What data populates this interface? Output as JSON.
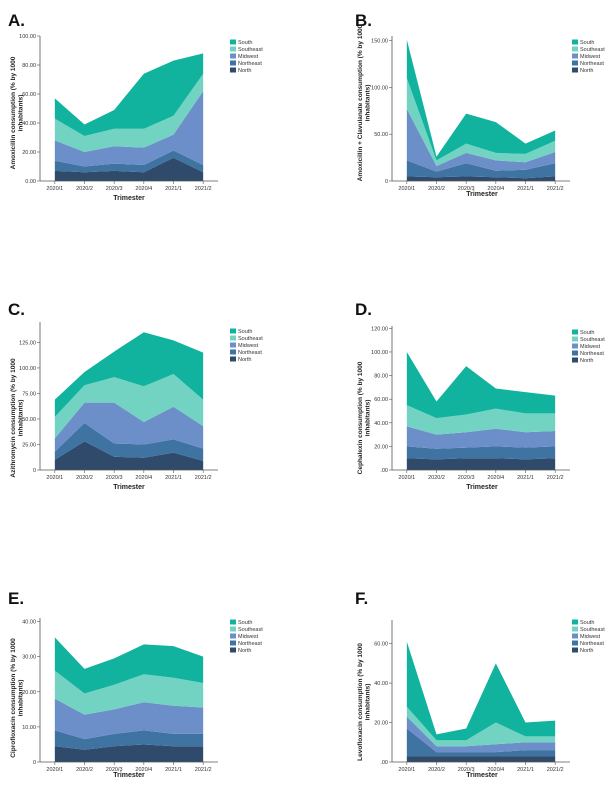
{
  "colors": {
    "South": "#11b39e",
    "Southeast": "#73d3c2",
    "Midwest": "#6d8fc9",
    "Northeast": "#3f73a2",
    "North": "#2f4a6b",
    "axis": "#555555",
    "plot_bg": "#ffffff"
  },
  "chart_data": [
    {
      "id": "A",
      "panel_label": "A.",
      "type": "area",
      "stacked": true,
      "xlabel": "Trimester",
      "ylabel": "Amoxicillin consumption (% by 1000 inhabitants)",
      "categories": [
        "2020/1",
        "2020/2",
        "2020/3",
        "2020/4",
        "2021/1",
        "2021/2"
      ],
      "yticks": [
        "0.00",
        "20.00",
        "40.00",
        "60.00",
        "80.00",
        "100.00"
      ],
      "ylim": [
        0,
        100
      ],
      "legend_position": "top-right",
      "series": [
        {
          "name": "North",
          "values": [
            7,
            6,
            7,
            6,
            16,
            6
          ]
        },
        {
          "name": "Northeast",
          "values": [
            7,
            4,
            5,
            5,
            5,
            5
          ]
        },
        {
          "name": "Midwest",
          "values": [
            14,
            10,
            12,
            12,
            11,
            51
          ]
        },
        {
          "name": "Southeast",
          "values": [
            15,
            11,
            12,
            13,
            13,
            12
          ]
        },
        {
          "name": "South",
          "values": [
            14,
            8,
            13,
            38,
            38,
            14
          ]
        }
      ]
    },
    {
      "id": "B",
      "panel_label": "B.",
      "type": "area",
      "stacked": true,
      "xlabel": "Trimester",
      "ylabel": "Amoxicillin + Clavulanate consumption (% by 1000 inhabitants)",
      "categories": [
        "2020/1",
        "2020/2",
        "2020/3",
        "2020/4",
        "2021/1",
        "2021/2"
      ],
      "yticks": [
        "0",
        "50.00",
        "100.00",
        "150.00"
      ],
      "ylim": [
        0,
        155
      ],
      "legend_position": "top-right",
      "series": [
        {
          "name": "North",
          "values": [
            5,
            4,
            5,
            4,
            3,
            5
          ]
        },
        {
          "name": "Northeast",
          "values": [
            17,
            6,
            14,
            7,
            9,
            14
          ]
        },
        {
          "name": "Midwest",
          "values": [
            55,
            6,
            11,
            11,
            8,
            12
          ]
        },
        {
          "name": "Southeast",
          "values": [
            33,
            6,
            10,
            8,
            9,
            12
          ]
        },
        {
          "name": "South",
          "values": [
            41,
            4,
            32,
            33,
            11,
            11
          ]
        }
      ]
    },
    {
      "id": "C",
      "panel_label": "C.",
      "type": "area",
      "stacked": true,
      "xlabel": "Trimester",
      "ylabel": "Azithromycin consumption (% by 1000 inhabitants)",
      "categories": [
        "2020/1",
        "2020/2",
        "2020/3",
        "2020/4",
        "2021/1",
        "2021/2"
      ],
      "yticks": [
        "0",
        "25.00",
        "50.00",
        "75.00",
        "100.00",
        "125.00"
      ],
      "ylim": [
        0,
        145
      ],
      "legend_position": "top-right",
      "series": [
        {
          "name": "North",
          "values": [
            10,
            28,
            13,
            12,
            17,
            9
          ]
        },
        {
          "name": "Northeast",
          "values": [
            8,
            18,
            13,
            13,
            13,
            12
          ]
        },
        {
          "name": "Midwest",
          "values": [
            13,
            20,
            40,
            22,
            32,
            22
          ]
        },
        {
          "name": "Southeast",
          "values": [
            21,
            17,
            25,
            35,
            32,
            26
          ]
        },
        {
          "name": "South",
          "values": [
            17,
            13,
            25,
            53,
            33,
            46
          ]
        }
      ]
    },
    {
      "id": "D",
      "panel_label": "D.",
      "type": "area",
      "stacked": true,
      "xlabel": "Trimester",
      "ylabel": "Cephalexin consumption (% by 1000 inhabitants)",
      "categories": [
        "2020/1",
        "2020/2",
        "2020/3",
        "2020/4",
        "2021/1",
        "2021/2"
      ],
      "yticks": [
        ".00",
        "20.00",
        "40.00",
        "60.00",
        "80.00",
        "100.00",
        "120.00"
      ],
      "ylim": [
        0,
        122
      ],
      "legend_position": "top-right",
      "series": [
        {
          "name": "North",
          "values": [
            10,
            9,
            10,
            10,
            9,
            10
          ]
        },
        {
          "name": "Northeast",
          "values": [
            10,
            9,
            9,
            10,
            10,
            10
          ]
        },
        {
          "name": "Midwest",
          "values": [
            17,
            12,
            13,
            15,
            13,
            13
          ]
        },
        {
          "name": "Southeast",
          "values": [
            18,
            14,
            15,
            17,
            16,
            15
          ]
        },
        {
          "name": "South",
          "values": [
            45,
            14,
            41,
            17,
            18,
            15
          ]
        }
      ]
    },
    {
      "id": "E",
      "panel_label": "E.",
      "type": "area",
      "stacked": true,
      "xlabel": "Trimester",
      "ylabel": "Ciprofloxacin consumption (% by 1000 inhabitants)",
      "categories": [
        "2020/1",
        "2020/2",
        "2020/3",
        "2020/4",
        "2021/1",
        "2021/2"
      ],
      "yticks": [
        "0",
        "10.00",
        "20.00",
        "30.00",
        "40.00"
      ],
      "ylim": [
        0,
        41
      ],
      "legend_position": "top-right",
      "series": [
        {
          "name": "North",
          "values": [
            4.5,
            3.5,
            4.5,
            5,
            4.5,
            4.5
          ]
        },
        {
          "name": "Northeast",
          "values": [
            4.5,
            3,
            3.5,
            4,
            3.5,
            3.5
          ]
        },
        {
          "name": "Midwest",
          "values": [
            9,
            7,
            7,
            8,
            8,
            7.5
          ]
        },
        {
          "name": "Southeast",
          "values": [
            8,
            6,
            7,
            8,
            8,
            7
          ]
        },
        {
          "name": "South",
          "values": [
            9.5,
            7,
            7.5,
            8.5,
            9,
            7.5
          ]
        }
      ]
    },
    {
      "id": "F",
      "panel_label": "F.",
      "type": "area",
      "stacked": true,
      "xlabel": "Trimester",
      "ylabel": "Levofloxacin consumption (% by 1000 inhabitants)",
      "categories": [
        "2020/1",
        "2020/2",
        "2020/3",
        "2020/4",
        "2021/1",
        "2021/2"
      ],
      "yticks": [
        ".00",
        "20.00",
        "40.00",
        "60.00"
      ],
      "ylim": [
        0,
        72
      ],
      "legend_position": "top-right",
      "series": [
        {
          "name": "North",
          "values": [
            3,
            3,
            3,
            3,
            3,
            3
          ]
        },
        {
          "name": "Northeast",
          "values": [
            14,
            2,
            2,
            2,
            3,
            3
          ]
        },
        {
          "name": "Midwest",
          "values": [
            6,
            3,
            3,
            4,
            4,
            4
          ]
        },
        {
          "name": "Southeast",
          "values": [
            5,
            3,
            3,
            11,
            3,
            3
          ]
        },
        {
          "name": "South",
          "values": [
            33,
            3,
            6,
            30,
            7,
            8
          ]
        }
      ]
    }
  ]
}
